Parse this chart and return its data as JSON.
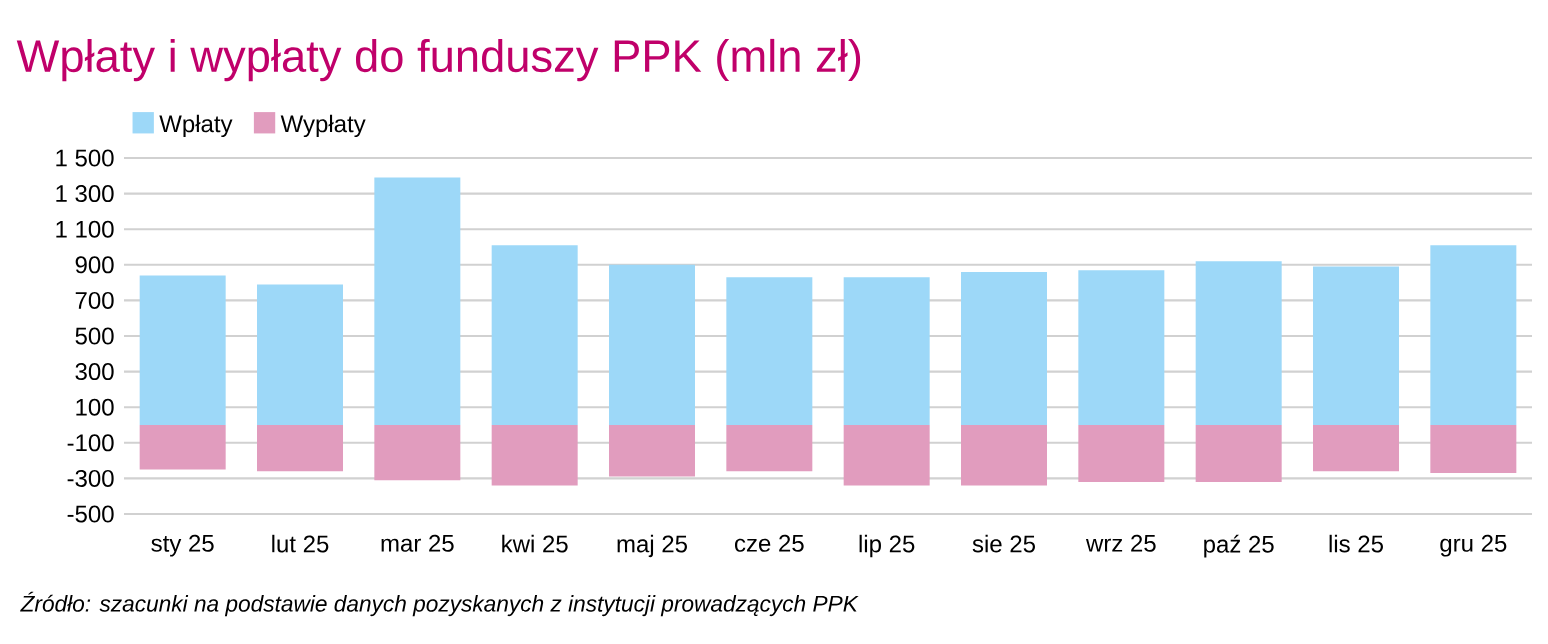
{
  "chart_data": {
    "type": "bar",
    "title": "Wpłaty i wypłaty do funduszy PPK (mln zł)",
    "categories": [
      "sty 25",
      "lut 25",
      "mar 25",
      "kwi 25",
      "maj 25",
      "cze 25",
      "lip 25",
      "sie 25",
      "wrz 25",
      "paź 25",
      "lis 25",
      "gru 25"
    ],
    "series": [
      {
        "name": "Wpłaty",
        "color": "#9dd8f8",
        "values": [
          840,
          790,
          1390,
          1010,
          900,
          830,
          830,
          860,
          870,
          920,
          890,
          1010
        ]
      },
      {
        "name": "Wypłaty",
        "color": "#e19cbe",
        "values": [
          -250,
          -260,
          -310,
          -340,
          -290,
          -260,
          -340,
          -340,
          -320,
          -320,
          -260,
          -270
        ]
      }
    ],
    "stacked": true,
    "ylim": [
      -500,
      1500
    ],
    "yticks": [
      {
        "value": -500,
        "label": "-500"
      },
      {
        "value": -300,
        "label": "-300"
      },
      {
        "value": -100,
        "label": "-100"
      },
      {
        "value": 100,
        "label": "100"
      },
      {
        "value": 300,
        "label": "300"
      },
      {
        "value": 500,
        "label": "500"
      },
      {
        "value": 700,
        "label": "700"
      },
      {
        "value": 900,
        "label": "900"
      },
      {
        "value": 1100,
        "label": "1 100"
      },
      {
        "value": 1300,
        "label": "1 300"
      },
      {
        "value": 1500,
        "label": "1 500"
      }
    ],
    "grid": "y",
    "legend": "top left",
    "annotations": [
      "Źródło: szacunki na podstawie danych pozyskanych z instytucji prowadzących PPK"
    ]
  }
}
